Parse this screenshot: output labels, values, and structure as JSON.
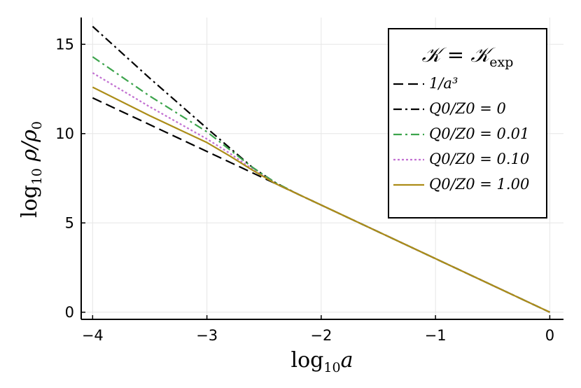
{
  "chart_data": {
    "type": "line",
    "title": "",
    "xlabel": "log10 a",
    "ylabel": "log10 ρ/ρ0",
    "xlim": [
      -4.1,
      0.12
    ],
    "ylim": [
      -0.4,
      16.5
    ],
    "x_ticks": [
      -4,
      -3,
      -2,
      -1,
      0
    ],
    "x_tick_labels": [
      "−4",
      "−3",
      "−2",
      "−1",
      "0"
    ],
    "y_ticks": [
      0,
      5,
      10,
      15
    ],
    "y_tick_labels": [
      "0",
      "5",
      "10",
      "15"
    ],
    "grid": true,
    "legend": {
      "placement": "top-right",
      "title": "𝒦 = 𝒦exp"
    },
    "series": [
      {
        "name": "1/a³",
        "color": "#000000",
        "dash": "dashed",
        "x": [
          -4,
          0
        ],
        "y": [
          12,
          0
        ]
      },
      {
        "name": "Q0/Z0 = 0",
        "color": "#000000",
        "dash": "dashdot",
        "x": [
          -4,
          -3.5,
          -3,
          -2.8,
          -2.6,
          -2.4,
          -2.2,
          -2,
          -1,
          0
        ],
        "y": [
          16.0,
          13.1,
          10.3,
          9.2,
          8.1,
          7.25,
          6.6,
          6.0,
          3.0,
          0.0
        ]
      },
      {
        "name": "Q0/Z0 = 0.01",
        "color": "#3DA44D",
        "dash": "dashdot-green",
        "x": [
          -4,
          -3.5,
          -3,
          -2.8,
          -2.6,
          -2.4,
          -2.2,
          -2,
          -1,
          0
        ],
        "y": [
          14.3,
          12.1,
          10.1,
          9.1,
          8.1,
          7.25,
          6.6,
          6.0,
          3.0,
          0.0
        ]
      },
      {
        "name": "Q0/Z0 = 0.10",
        "color": "#C271D2",
        "dash": "dotted",
        "x": [
          -4,
          -3.5,
          -3,
          -2.8,
          -2.6,
          -2.4,
          -2.2,
          -2,
          -1,
          0
        ],
        "y": [
          13.4,
          11.5,
          9.7,
          8.9,
          8.0,
          7.2,
          6.6,
          6.0,
          3.0,
          0.0
        ]
      },
      {
        "name": "Q0/Z0 = 1.00",
        "color": "#AC8D18",
        "dash": "solid",
        "x": [
          -4,
          -3.5,
          -3,
          -2.8,
          -2.6,
          -2.4,
          -2.2,
          -2,
          -1,
          0
        ],
        "y": [
          12.6,
          11.0,
          9.5,
          8.75,
          7.95,
          7.2,
          6.6,
          6.0,
          3.0,
          0.0
        ]
      }
    ]
  }
}
